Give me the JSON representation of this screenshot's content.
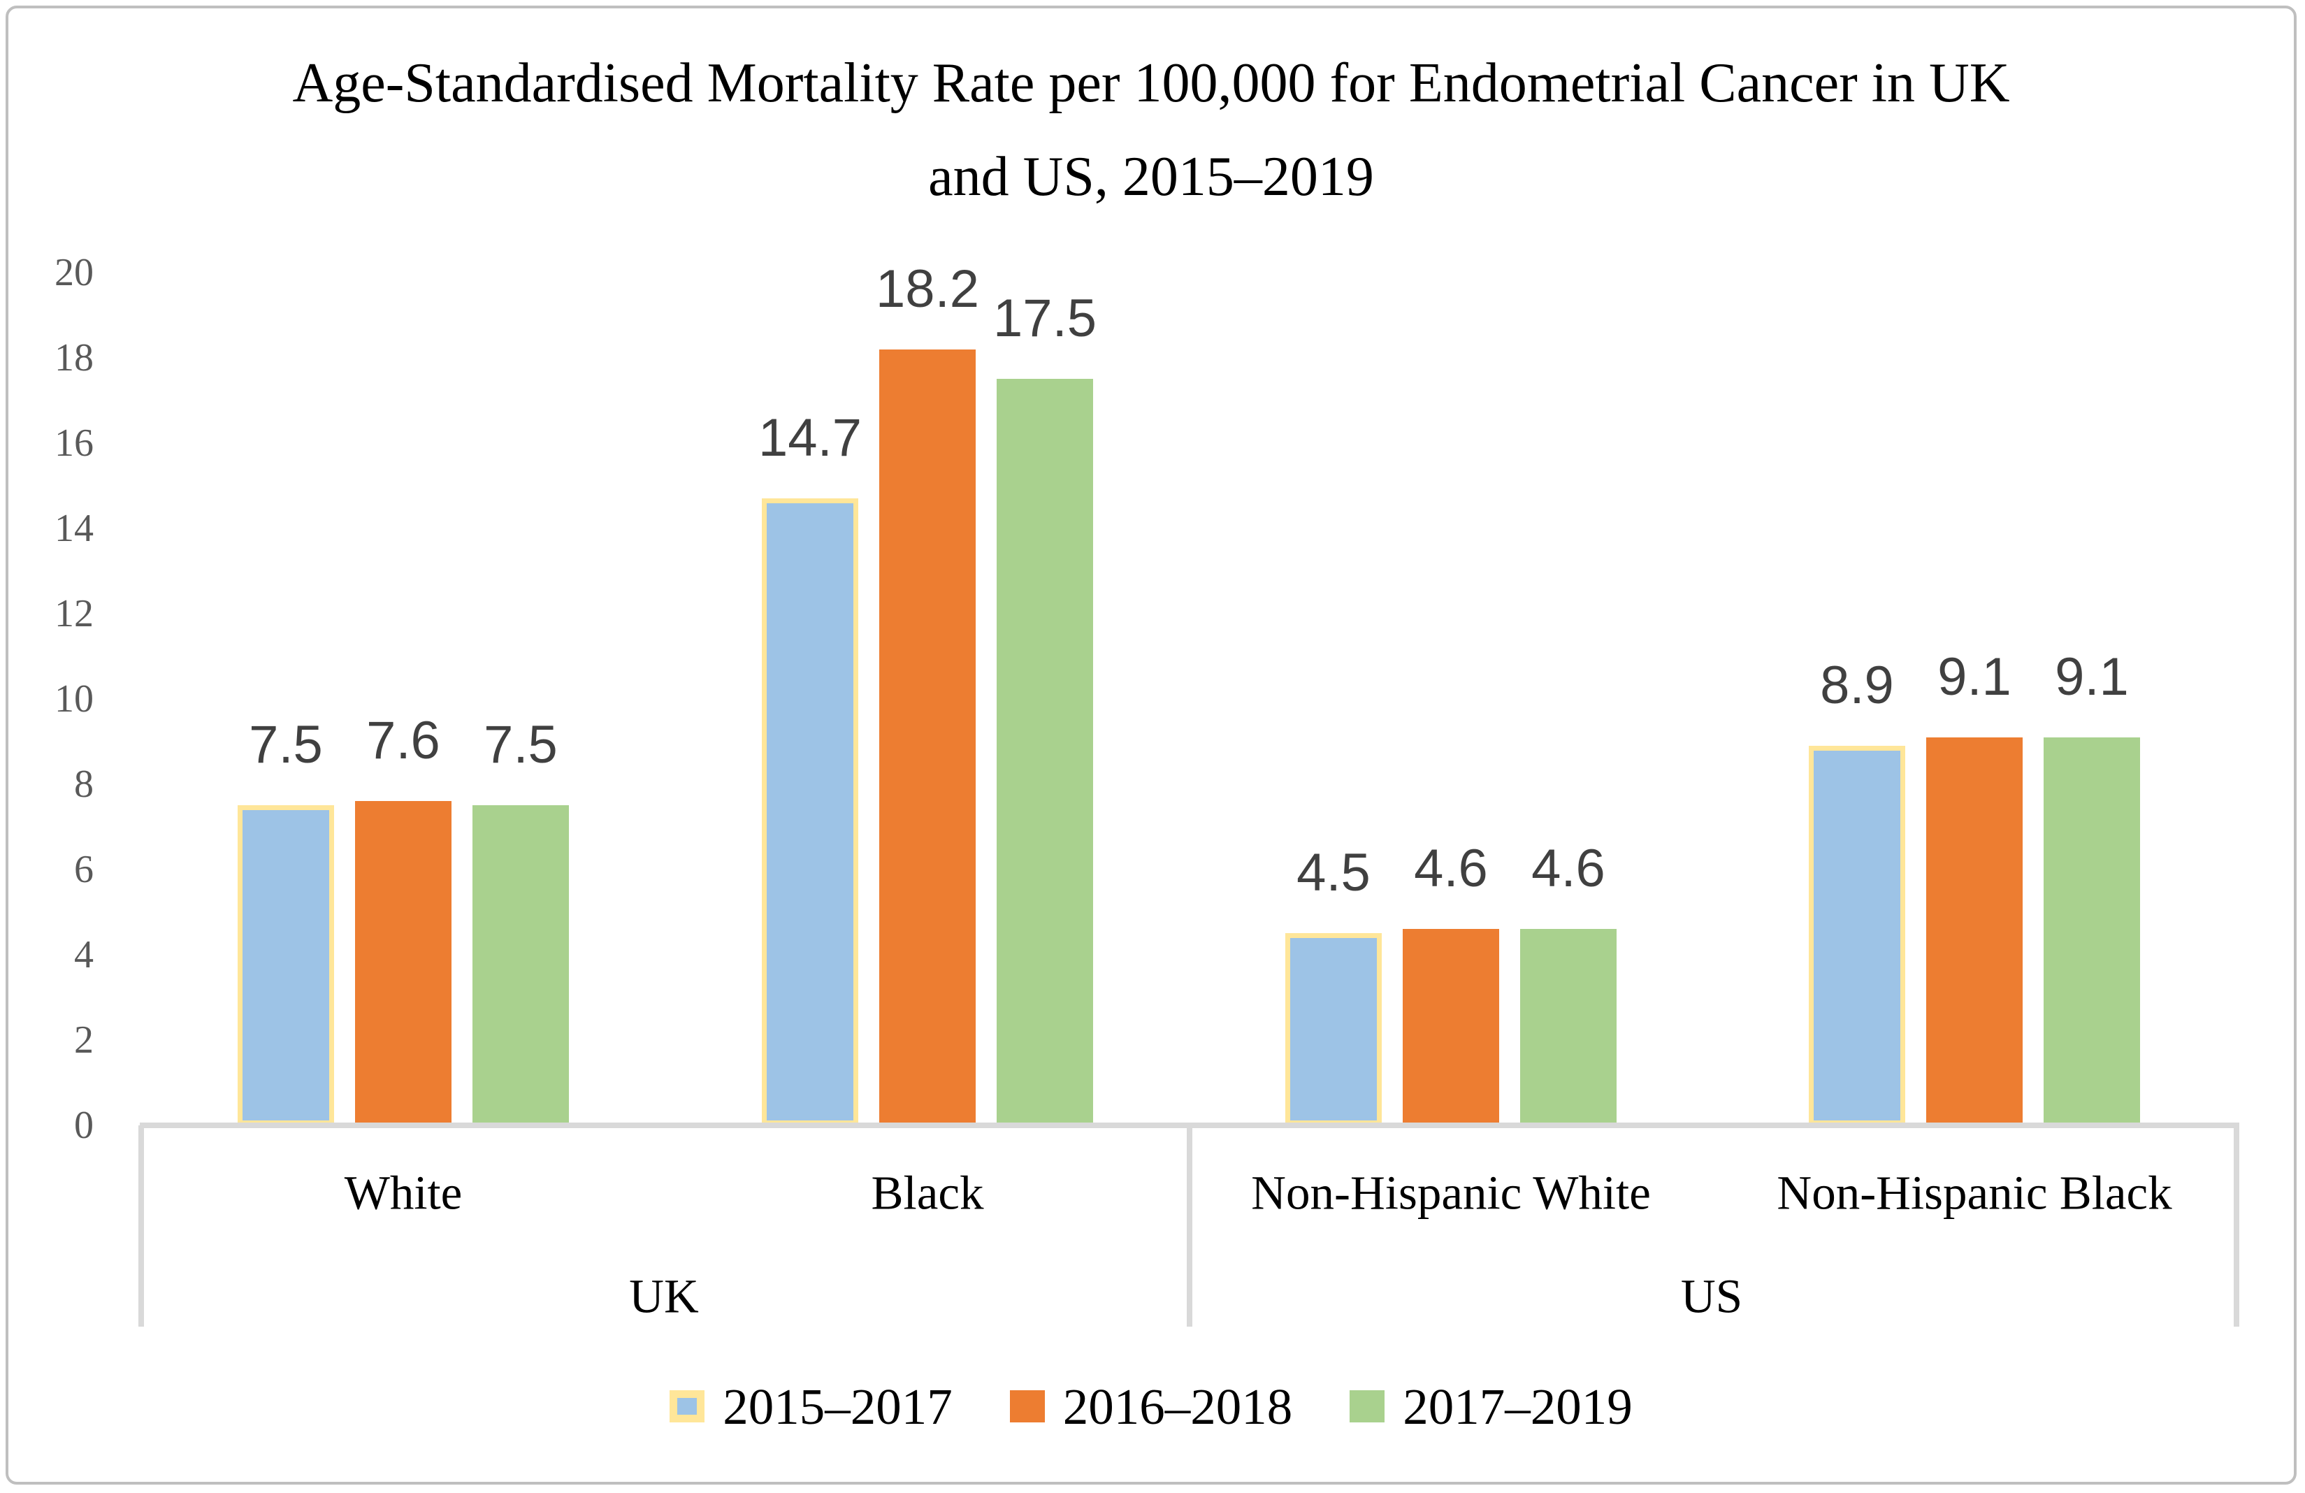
{
  "chart": {
    "title_line1": "Age-Standardised Mortality Rate per 100,000 for Endometrial Cancer in UK",
    "title_line2": "and US, 2015–2019"
  },
  "colors": {
    "axis_line": "#D9D9D9",
    "tick_text": "#595959",
    "value_label_text": "#404040",
    "category_text": "#000000",
    "title_text": "#000000",
    "frame_border": "#BFBFBF",
    "background": "#FFFFFF"
  },
  "chart_data": {
    "type": "bar",
    "title": "Age-Standardised Mortality Rate per 100,000 for Endometrial Cancer in UK and US, 2015–2019",
    "xlabel": "",
    "ylabel": "",
    "ylim": [
      0,
      20
    ],
    "ytick_step": 2,
    "yticks": [
      0,
      2,
      4,
      6,
      8,
      10,
      12,
      14,
      16,
      18,
      20
    ],
    "grid": false,
    "legend_position": "bottom",
    "data_labels": true,
    "categories": [
      "White",
      "Black",
      "Non-Hispanic White",
      "Non-Hispanic Black"
    ],
    "category_groups": [
      {
        "label": "UK",
        "categories": [
          "White",
          "Black"
        ]
      },
      {
        "label": "US",
        "categories": [
          "Non-Hispanic White",
          "Non-Hispanic Black"
        ]
      }
    ],
    "series": [
      {
        "name": "2015–2017",
        "color": "#9DC3E6",
        "outline": "#FFE699",
        "values": [
          7.5,
          14.7,
          4.5,
          8.9
        ]
      },
      {
        "name": "2016–2018",
        "color": "#ED7D31",
        "outline": null,
        "values": [
          7.6,
          18.2,
          4.6,
          9.1
        ]
      },
      {
        "name": "2017–2019",
        "color": "#A9D18E",
        "outline": null,
        "values": [
          7.5,
          17.5,
          4.6,
          9.1
        ]
      }
    ]
  }
}
